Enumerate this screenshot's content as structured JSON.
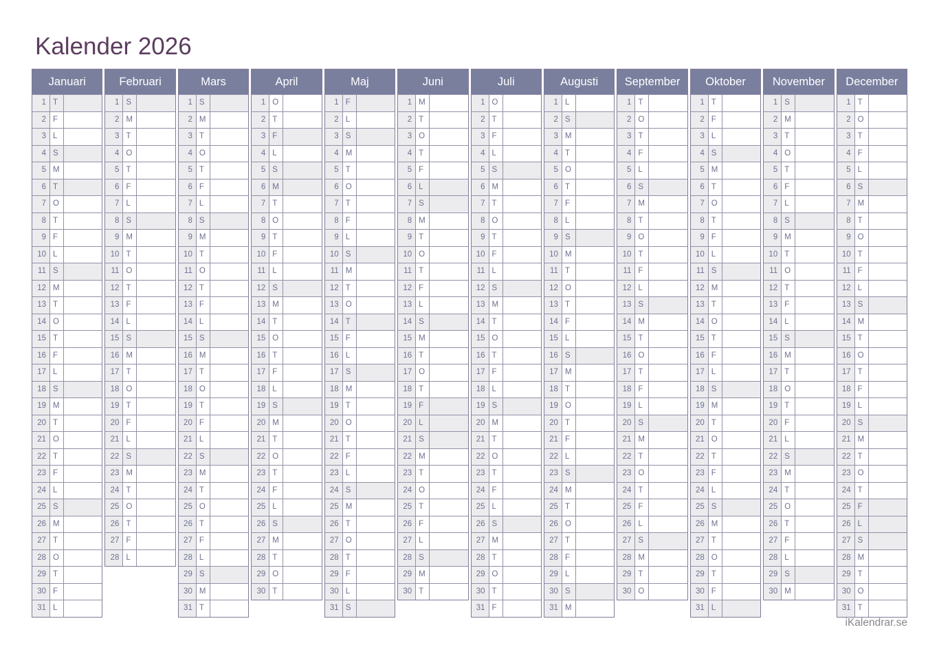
{
  "title": "Kalender 2026",
  "year": "2026",
  "footer": "iKalendrar.se",
  "colors": {
    "page_bg": "#ffffff",
    "title_text": "#5b3d5e",
    "header_bg": "#7a7f9e",
    "header_text": "#ffffff",
    "month_border": "#817b97",
    "grid_border": "#948fa6",
    "cell_text": "#6d7190",
    "shaded_bg": "#ececee",
    "footer_text": "#87878f"
  },
  "day_numbers": [
    1,
    2,
    3,
    4,
    5,
    6,
    7,
    8,
    9,
    10,
    11,
    12,
    13,
    14,
    15,
    16,
    17,
    18,
    19,
    20,
    21,
    22,
    23,
    24,
    25,
    26,
    27,
    28,
    29,
    30,
    31
  ],
  "months": [
    {
      "name": "Januari",
      "letters": [
        "T",
        "F",
        "L",
        "S",
        "M",
        "T",
        "O",
        "T",
        "F",
        "L",
        "S",
        "M",
        "T",
        "O",
        "T",
        "F",
        "L",
        "S",
        "M",
        "T",
        "O",
        "T",
        "F",
        "L",
        "S",
        "M",
        "T",
        "O",
        "T",
        "F",
        "L"
      ],
      "shaded_days": [
        1,
        4,
        6,
        11,
        18,
        25
      ]
    },
    {
      "name": "Februari",
      "letters": [
        "S",
        "M",
        "T",
        "O",
        "T",
        "F",
        "L",
        "S",
        "M",
        "T",
        "O",
        "T",
        "F",
        "L",
        "S",
        "M",
        "T",
        "O",
        "T",
        "F",
        "L",
        "S",
        "M",
        "T",
        "O",
        "T",
        "F",
        "L"
      ],
      "shaded_days": [
        1,
        8,
        15,
        22
      ]
    },
    {
      "name": "Mars",
      "letters": [
        "S",
        "M",
        "T",
        "O",
        "T",
        "F",
        "L",
        "S",
        "M",
        "T",
        "O",
        "T",
        "F",
        "L",
        "S",
        "M",
        "T",
        "O",
        "T",
        "F",
        "L",
        "S",
        "M",
        "T",
        "O",
        "T",
        "F",
        "L",
        "S",
        "M",
        "T"
      ],
      "shaded_days": [
        1,
        8,
        15,
        22,
        29
      ]
    },
    {
      "name": "April",
      "letters": [
        "O",
        "T",
        "F",
        "L",
        "S",
        "M",
        "T",
        "O",
        "T",
        "F",
        "L",
        "S",
        "M",
        "T",
        "O",
        "T",
        "F",
        "L",
        "S",
        "M",
        "T",
        "O",
        "T",
        "F",
        "L",
        "S",
        "M",
        "T",
        "O",
        "T"
      ],
      "shaded_days": [
        3,
        5,
        6,
        12,
        19,
        26
      ]
    },
    {
      "name": "Maj",
      "letters": [
        "F",
        "L",
        "S",
        "M",
        "T",
        "O",
        "T",
        "F",
        "L",
        "S",
        "M",
        "T",
        "O",
        "T",
        "F",
        "L",
        "S",
        "M",
        "T",
        "O",
        "T",
        "F",
        "L",
        "S",
        "M",
        "T",
        "O",
        "T",
        "F",
        "L",
        "S"
      ],
      "shaded_days": [
        1,
        3,
        10,
        14,
        17,
        24,
        31
      ]
    },
    {
      "name": "Juni",
      "letters": [
        "M",
        "T",
        "O",
        "T",
        "F",
        "L",
        "S",
        "M",
        "T",
        "O",
        "T",
        "F",
        "L",
        "S",
        "M",
        "T",
        "O",
        "T",
        "F",
        "L",
        "S",
        "M",
        "T",
        "O",
        "T",
        "F",
        "L",
        "S",
        "M",
        "T"
      ],
      "shaded_days": [
        6,
        7,
        14,
        19,
        20,
        21,
        28
      ]
    },
    {
      "name": "Juli",
      "letters": [
        "O",
        "T",
        "F",
        "L",
        "S",
        "M",
        "T",
        "O",
        "T",
        "F",
        "L",
        "S",
        "M",
        "T",
        "O",
        "T",
        "F",
        "L",
        "S",
        "M",
        "T",
        "O",
        "T",
        "F",
        "L",
        "S",
        "M",
        "T",
        "O",
        "T",
        "F"
      ],
      "shaded_days": [
        5,
        12,
        19,
        26
      ]
    },
    {
      "name": "Augusti",
      "letters": [
        "L",
        "S",
        "M",
        "T",
        "O",
        "T",
        "F",
        "L",
        "S",
        "M",
        "T",
        "O",
        "T",
        "F",
        "L",
        "S",
        "M",
        "T",
        "O",
        "T",
        "F",
        "L",
        "S",
        "M",
        "T",
        "O",
        "T",
        "F",
        "L",
        "S",
        "M"
      ],
      "shaded_days": [
        2,
        9,
        16,
        23,
        30
      ]
    },
    {
      "name": "September",
      "letters": [
        "T",
        "O",
        "T",
        "F",
        "L",
        "S",
        "M",
        "T",
        "O",
        "T",
        "F",
        "L",
        "S",
        "M",
        "T",
        "O",
        "T",
        "F",
        "L",
        "S",
        "M",
        "T",
        "O",
        "T",
        "F",
        "L",
        "S",
        "M",
        "T",
        "O"
      ],
      "shaded_days": [
        6,
        13,
        20,
        27
      ]
    },
    {
      "name": "Oktober",
      "letters": [
        "T",
        "F",
        "L",
        "S",
        "M",
        "T",
        "O",
        "T",
        "F",
        "L",
        "S",
        "M",
        "T",
        "O",
        "T",
        "F",
        "L",
        "S",
        "M",
        "T",
        "O",
        "T",
        "F",
        "L",
        "S",
        "M",
        "T",
        "O",
        "T",
        "F",
        "L"
      ],
      "shaded_days": [
        4,
        11,
        18,
        25,
        31
      ]
    },
    {
      "name": "November",
      "letters": [
        "S",
        "M",
        "T",
        "O",
        "T",
        "F",
        "L",
        "S",
        "M",
        "T",
        "O",
        "T",
        "F",
        "L",
        "S",
        "M",
        "T",
        "O",
        "T",
        "F",
        "L",
        "S",
        "M",
        "T",
        "O",
        "T",
        "F",
        "L",
        "S",
        "M"
      ],
      "shaded_days": [
        1,
        8,
        15,
        22,
        29
      ]
    },
    {
      "name": "December",
      "letters": [
        "T",
        "O",
        "T",
        "F",
        "L",
        "S",
        "M",
        "T",
        "O",
        "T",
        "F",
        "L",
        "S",
        "M",
        "T",
        "O",
        "T",
        "F",
        "L",
        "S",
        "M",
        "T",
        "O",
        "T",
        "F",
        "L",
        "S",
        "M",
        "T",
        "O",
        "T"
      ],
      "shaded_days": [
        6,
        13,
        20,
        25,
        26,
        27
      ]
    }
  ]
}
